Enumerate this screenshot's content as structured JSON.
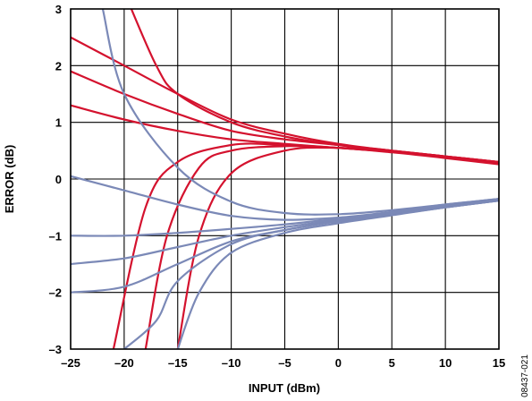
{
  "chart_data": {
    "type": "line",
    "xlabel": "INPUT (dBm)",
    "ylabel": "ERROR (dB)",
    "xlim": [
      -25,
      15
    ],
    "ylim": [
      -3,
      3
    ],
    "xticks": [
      -25,
      -20,
      -15,
      -10,
      -5,
      0,
      5,
      10,
      15
    ],
    "yticks": [
      -3,
      -2,
      -1,
      0,
      1,
      2,
      3
    ],
    "xtick_labels": [
      "–25",
      "–20",
      "–15",
      "–10",
      "–5",
      "0",
      "5",
      "10",
      "15"
    ],
    "ytick_labels": [
      "–3",
      "–2",
      "–1",
      "0",
      "1",
      "2",
      "3"
    ],
    "grid": true,
    "figure_id": "08437-021",
    "series": [
      {
        "color": "#d4122e",
        "curves": [
          {
            "x": [
              -20,
              -17,
              -15,
              -10,
              -5,
              0,
              5,
              10,
              15
            ],
            "y": [
              3.3,
              2.0,
              1.5,
              1.0,
              0.75,
              0.6,
              0.5,
              0.4,
              0.3
            ]
          },
          {
            "x": [
              -25,
              -20,
              -15,
              -10,
              -5,
              0,
              5,
              10,
              15
            ],
            "y": [
              2.5,
              2.0,
              1.5,
              1.05,
              0.8,
              0.62,
              0.5,
              0.4,
              0.3
            ]
          },
          {
            "x": [
              -25,
              -20,
              -15,
              -10,
              -5,
              0,
              5,
              10,
              15
            ],
            "y": [
              1.9,
              1.5,
              1.15,
              0.85,
              0.7,
              0.6,
              0.5,
              0.4,
              0.3
            ]
          },
          {
            "x": [
              -25,
              -20,
              -15,
              -10,
              -5,
              0,
              5,
              10,
              15
            ],
            "y": [
              1.3,
              1.05,
              0.85,
              0.7,
              0.62,
              0.55,
              0.48,
              0.38,
              0.28
            ]
          },
          {
            "x": [
              -21,
              -18,
              -15,
              -10,
              -5,
              0,
              5,
              10,
              15
            ],
            "y": [
              -3.0,
              -0.5,
              0.3,
              0.6,
              0.6,
              0.55,
              0.48,
              0.38,
              0.27
            ]
          },
          {
            "x": [
              -18,
              -16,
              -13,
              -10,
              -5,
              0,
              5,
              10,
              15
            ],
            "y": [
              -3.0,
              -1.0,
              0.2,
              0.5,
              0.58,
              0.55,
              0.47,
              0.37,
              0.26
            ]
          },
          {
            "x": [
              -15,
              -13,
              -10,
              -5,
              0,
              5,
              10,
              15
            ],
            "y": [
              -3.0,
              -1.0,
              0.1,
              0.5,
              0.55,
              0.48,
              0.38,
              0.27
            ]
          }
        ]
      },
      {
        "color": "#7b89b7",
        "curves": [
          {
            "x": [
              -22,
              -20,
              -15,
              -10,
              -5,
              0,
              5,
              10,
              15
            ],
            "y": [
              3.0,
              1.5,
              0.2,
              -0.4,
              -0.6,
              -0.62,
              -0.55,
              -0.45,
              -0.35
            ]
          },
          {
            "x": [
              -25,
              -20,
              -15,
              -10,
              -5,
              0,
              5,
              10,
              15
            ],
            "y": [
              0.05,
              -0.2,
              -0.45,
              -0.65,
              -0.72,
              -0.68,
              -0.58,
              -0.45,
              -0.35
            ]
          },
          {
            "x": [
              -25,
              -20,
              -15,
              -10,
              -5,
              0,
              5,
              10,
              15
            ],
            "y": [
              -1.0,
              -1.0,
              -0.95,
              -0.88,
              -0.8,
              -0.7,
              -0.6,
              -0.48,
              -0.35
            ]
          },
          {
            "x": [
              -25,
              -20,
              -15,
              -10,
              -5,
              0,
              5,
              10,
              15
            ],
            "y": [
              -1.5,
              -1.4,
              -1.2,
              -1.0,
              -0.85,
              -0.72,
              -0.6,
              -0.48,
              -0.35
            ]
          },
          {
            "x": [
              -25,
              -20,
              -15,
              -10,
              -5,
              0,
              5,
              10,
              15
            ],
            "y": [
              -2.0,
              -1.9,
              -1.5,
              -1.1,
              -0.9,
              -0.74,
              -0.62,
              -0.5,
              -0.38
            ]
          },
          {
            "x": [
              -20,
              -17,
              -15,
              -10,
              -5,
              0,
              5,
              10,
              15
            ],
            "y": [
              -3.0,
              -2.5,
              -1.8,
              -1.15,
              -0.9,
              -0.75,
              -0.63,
              -0.5,
              -0.38
            ]
          },
          {
            "x": [
              -15,
              -13,
              -10,
              -5,
              0,
              5,
              10,
              15
            ],
            "y": [
              -3.0,
              -2.0,
              -1.3,
              -0.95,
              -0.78,
              -0.64,
              -0.5,
              -0.38
            ]
          }
        ]
      }
    ]
  }
}
